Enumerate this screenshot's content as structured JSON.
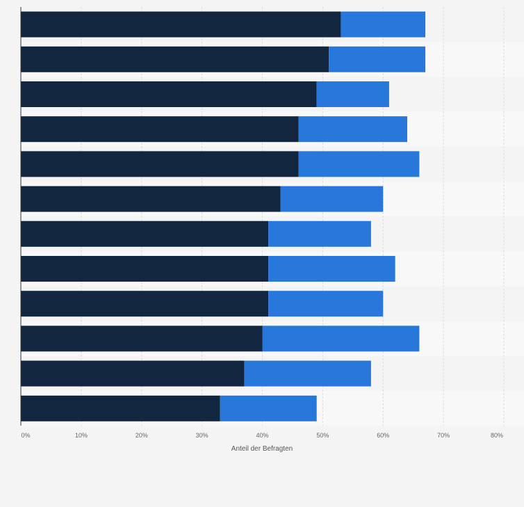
{
  "chart_data": {
    "type": "bar",
    "orientation": "horizontal",
    "stacked": true,
    "title": "",
    "xlabel": "Anteil der Befragten",
    "ylabel": "",
    "xlim": [
      0,
      80
    ],
    "x_ticks": [
      0,
      10,
      20,
      30,
      40,
      50,
      60,
      70,
      80
    ],
    "x_tick_labels": [
      "0%",
      "10%",
      "20%",
      "30%",
      "40%",
      "50%",
      "60%",
      "70%",
      "80%"
    ],
    "categories": [
      "",
      "",
      "",
      "",
      "",
      "",
      "",
      "",
      "",
      "",
      "",
      ""
    ],
    "series": [
      {
        "name": "",
        "color": "#12263f",
        "values": [
          53,
          51,
          49,
          46,
          46,
          43,
          41,
          41,
          41,
          40,
          37,
          33
        ]
      },
      {
        "name": "",
        "color": "#2878dc",
        "values": [
          14,
          16,
          12,
          18,
          20,
          17,
          17,
          21,
          19,
          26,
          21,
          16
        ]
      }
    ],
    "grid": true,
    "legend": "none"
  }
}
